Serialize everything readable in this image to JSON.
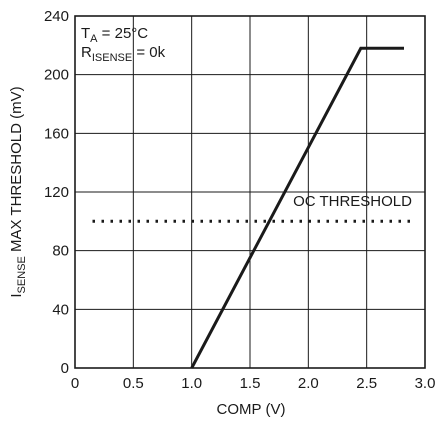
{
  "chart_data": {
    "type": "line",
    "xlabel": "COMP (V)",
    "ylabel": {
      "main": "I",
      "sub": "SENSE",
      "rest": " MAX THRESHOLD (mV)"
    },
    "xlim": [
      0,
      3.0
    ],
    "ylim": [
      0,
      240
    ],
    "x_ticks": [
      {
        "value": 0,
        "label": "0"
      },
      {
        "value": 0.5,
        "label": "0.5"
      },
      {
        "value": 1.0,
        "label": "1.0"
      },
      {
        "value": 1.5,
        "label": "1.5"
      },
      {
        "value": 2.0,
        "label": "2.0"
      },
      {
        "value": 2.5,
        "label": "2.5"
      },
      {
        "value": 3.0,
        "label": "3.0"
      }
    ],
    "y_ticks": [
      {
        "value": 0,
        "label": "0"
      },
      {
        "value": 40,
        "label": "40"
      },
      {
        "value": 80,
        "label": "80"
      },
      {
        "value": 120,
        "label": "120"
      },
      {
        "value": 160,
        "label": "160"
      },
      {
        "value": 200,
        "label": "200"
      },
      {
        "value": 240,
        "label": "240"
      }
    ],
    "grid": true,
    "series": [
      {
        "style": "solid",
        "x": [
          1.0,
          2.45,
          2.82
        ],
        "y": [
          0,
          218,
          218
        ]
      },
      {
        "name": "OC THRESHOLD",
        "style": "dotted",
        "x": [
          0.15,
          2.9
        ],
        "y": [
          100,
          100
        ]
      }
    ],
    "annotations": {
      "temp": {
        "main": "T",
        "sub": "A",
        "rest": " = 25°C"
      },
      "rsense": {
        "main": "R",
        "sub": "ISENSE",
        "rest": " = 0k"
      },
      "oc_label": "OC THRESHOLD"
    },
    "colors": {
      "line": "#1a1a1a",
      "grid": "#1a1a1a"
    }
  }
}
